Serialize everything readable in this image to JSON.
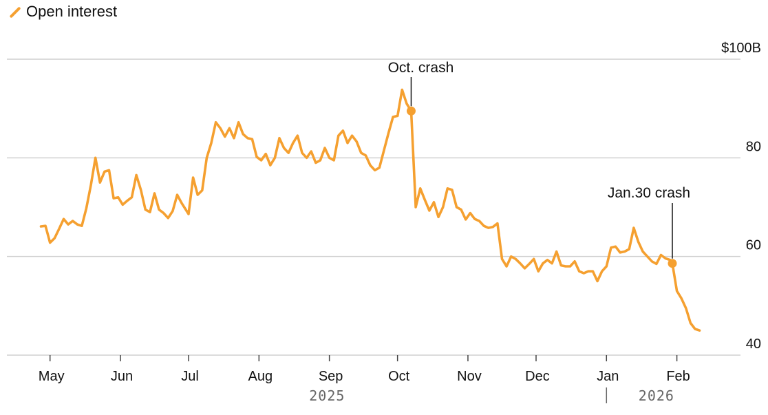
{
  "legend": {
    "label": "Open interest",
    "color": "#f5a030"
  },
  "chart_data": {
    "type": "line",
    "title": "",
    "xlabel": "",
    "ylabel": "",
    "ylim": [
      38,
      100
    ],
    "y_ticks": [
      {
        "value": 100,
        "label": "$100B"
      },
      {
        "value": 80,
        "label": "80"
      },
      {
        "value": 60,
        "label": "60"
      },
      {
        "value": 40,
        "label": "40"
      }
    ],
    "x_ticks": [
      {
        "date": "2025-05-01",
        "label": "May"
      },
      {
        "date": "2025-06-01",
        "label": "Jun"
      },
      {
        "date": "2025-07-01",
        "label": "Jul"
      },
      {
        "date": "2025-08-01",
        "label": "Aug"
      },
      {
        "date": "2025-09-01",
        "label": "Sep"
      },
      {
        "date": "2025-10-01",
        "label": "Oct"
      },
      {
        "date": "2025-11-01",
        "label": "Nov"
      },
      {
        "date": "2025-12-01",
        "label": "Dec"
      },
      {
        "date": "2026-01-01",
        "label": "Jan"
      },
      {
        "date": "2026-02-01",
        "label": "Feb"
      }
    ],
    "years": [
      {
        "label": "2025",
        "date": "2025-08-31"
      },
      {
        "label": "2026",
        "date": "2026-01-23"
      }
    ],
    "year_separator_date": "2026-01-01",
    "grid": true,
    "legend_position": "top-left",
    "series": [
      {
        "name": "Open interest",
        "color": "#f5a030",
        "points": [
          [
            "2025-04-27",
            66.1
          ],
          [
            "2025-04-29",
            66.2
          ],
          [
            "2025-05-01",
            62.8
          ],
          [
            "2025-05-03",
            63.7
          ],
          [
            "2025-05-05",
            65.6
          ],
          [
            "2025-05-07",
            67.6
          ],
          [
            "2025-05-09",
            66.5
          ],
          [
            "2025-05-11",
            67.2
          ],
          [
            "2025-05-13",
            66.5
          ],
          [
            "2025-05-15",
            66.2
          ],
          [
            "2025-05-17",
            69.8
          ],
          [
            "2025-05-19",
            74.5
          ],
          [
            "2025-05-21",
            80.0
          ],
          [
            "2025-05-23",
            75.0
          ],
          [
            "2025-05-25",
            77.2
          ],
          [
            "2025-05-27",
            77.5
          ],
          [
            "2025-05-29",
            71.8
          ],
          [
            "2025-05-31",
            72.0
          ],
          [
            "2025-06-02",
            70.5
          ],
          [
            "2025-06-04",
            71.3
          ],
          [
            "2025-06-06",
            72.0
          ],
          [
            "2025-06-08",
            76.5
          ],
          [
            "2025-06-10",
            73.5
          ],
          [
            "2025-06-12",
            69.5
          ],
          [
            "2025-06-14",
            69.0
          ],
          [
            "2025-06-16",
            72.8
          ],
          [
            "2025-06-18",
            69.5
          ],
          [
            "2025-06-20",
            68.8
          ],
          [
            "2025-06-22",
            67.8
          ],
          [
            "2025-06-24",
            69.2
          ],
          [
            "2025-06-26",
            72.5
          ],
          [
            "2025-06-28",
            70.8
          ],
          [
            "2025-07-01",
            68.6
          ],
          [
            "2025-07-03",
            76.0
          ],
          [
            "2025-07-05",
            72.5
          ],
          [
            "2025-07-07",
            73.4
          ],
          [
            "2025-07-09",
            80.0
          ],
          [
            "2025-07-11",
            83.0
          ],
          [
            "2025-07-13",
            87.2
          ],
          [
            "2025-07-15",
            86.0
          ],
          [
            "2025-07-17",
            84.3
          ],
          [
            "2025-07-19",
            86.0
          ],
          [
            "2025-07-21",
            84.0
          ],
          [
            "2025-07-23",
            87.2
          ],
          [
            "2025-07-25",
            84.8
          ],
          [
            "2025-07-27",
            84.0
          ],
          [
            "2025-07-29",
            83.8
          ],
          [
            "2025-07-31",
            80.2
          ],
          [
            "2025-08-02",
            79.5
          ],
          [
            "2025-08-04",
            80.8
          ],
          [
            "2025-08-06",
            78.5
          ],
          [
            "2025-08-08",
            80.0
          ],
          [
            "2025-08-10",
            84.0
          ],
          [
            "2025-08-12",
            82.0
          ],
          [
            "2025-08-14",
            81.0
          ],
          [
            "2025-08-16",
            83.0
          ],
          [
            "2025-08-18",
            84.5
          ],
          [
            "2025-08-20",
            81.0
          ],
          [
            "2025-08-22",
            80.0
          ],
          [
            "2025-08-24",
            81.3
          ],
          [
            "2025-08-26",
            79.0
          ],
          [
            "2025-08-28",
            79.5
          ],
          [
            "2025-08-30",
            82.0
          ],
          [
            "2025-09-01",
            80.0
          ],
          [
            "2025-09-03",
            79.5
          ],
          [
            "2025-09-05",
            84.5
          ],
          [
            "2025-09-07",
            85.5
          ],
          [
            "2025-09-09",
            83.0
          ],
          [
            "2025-09-11",
            84.5
          ],
          [
            "2025-09-13",
            83.3
          ],
          [
            "2025-09-15",
            81.0
          ],
          [
            "2025-09-17",
            80.5
          ],
          [
            "2025-09-19",
            78.5
          ],
          [
            "2025-09-21",
            77.5
          ],
          [
            "2025-09-23",
            78.0
          ],
          [
            "2025-09-25",
            81.5
          ],
          [
            "2025-09-27",
            85.0
          ],
          [
            "2025-09-29",
            88.3
          ],
          [
            "2025-10-01",
            88.5
          ],
          [
            "2025-10-03",
            93.8
          ],
          [
            "2025-10-05",
            91.0
          ],
          [
            "2025-10-07",
            89.5
          ],
          [
            "2025-10-09",
            70.0
          ],
          [
            "2025-10-11",
            73.8
          ],
          [
            "2025-10-13",
            71.5
          ],
          [
            "2025-10-15",
            69.3
          ],
          [
            "2025-10-17",
            71.0
          ],
          [
            "2025-10-19",
            68.0
          ],
          [
            "2025-10-21",
            70.0
          ],
          [
            "2025-10-23",
            73.8
          ],
          [
            "2025-10-25",
            73.5
          ],
          [
            "2025-10-27",
            70.0
          ],
          [
            "2025-10-29",
            69.5
          ],
          [
            "2025-10-31",
            67.5
          ],
          [
            "2025-11-02",
            68.8
          ],
          [
            "2025-11-04",
            67.6
          ],
          [
            "2025-11-06",
            67.2
          ],
          [
            "2025-11-08",
            66.2
          ],
          [
            "2025-11-10",
            65.8
          ],
          [
            "2025-11-12",
            66.0
          ],
          [
            "2025-11-14",
            66.7
          ],
          [
            "2025-11-16",
            59.5
          ],
          [
            "2025-11-18",
            58.0
          ],
          [
            "2025-11-20",
            60.0
          ],
          [
            "2025-11-22",
            59.5
          ],
          [
            "2025-11-24",
            58.6
          ],
          [
            "2025-11-26",
            57.6
          ],
          [
            "2025-11-28",
            58.5
          ],
          [
            "2025-11-30",
            59.5
          ],
          [
            "2025-12-02",
            57.0
          ],
          [
            "2025-12-04",
            58.6
          ],
          [
            "2025-12-06",
            59.3
          ],
          [
            "2025-12-08",
            58.6
          ],
          [
            "2025-12-10",
            61.0
          ],
          [
            "2025-12-12",
            58.2
          ],
          [
            "2025-12-14",
            58.0
          ],
          [
            "2025-12-16",
            58.0
          ],
          [
            "2025-12-18",
            59.0
          ],
          [
            "2025-12-20",
            57.0
          ],
          [
            "2025-12-22",
            56.6
          ],
          [
            "2025-12-24",
            57.0
          ],
          [
            "2025-12-26",
            57.0
          ],
          [
            "2025-12-28",
            55.0
          ],
          [
            "2025-12-30",
            57.0
          ],
          [
            "2026-01-01",
            58.0
          ],
          [
            "2026-01-03",
            61.8
          ],
          [
            "2026-01-05",
            62.0
          ],
          [
            "2026-01-07",
            60.8
          ],
          [
            "2026-01-09",
            61.0
          ],
          [
            "2026-01-11",
            61.5
          ],
          [
            "2026-01-13",
            65.8
          ],
          [
            "2026-01-15",
            63.0
          ],
          [
            "2026-01-17",
            61.0
          ],
          [
            "2026-01-19",
            60.0
          ],
          [
            "2026-01-21",
            59.0
          ],
          [
            "2026-01-23",
            58.5
          ],
          [
            "2026-01-25",
            60.3
          ],
          [
            "2026-01-27",
            59.6
          ],
          [
            "2026-01-29",
            59.3
          ],
          [
            "2026-01-30",
            58.6
          ],
          [
            "2026-02-01",
            53.0
          ],
          [
            "2026-02-03",
            51.5
          ],
          [
            "2026-02-05",
            49.5
          ],
          [
            "2026-02-07",
            46.5
          ],
          [
            "2026-02-09",
            45.3
          ],
          [
            "2026-02-11",
            45.0
          ]
        ]
      }
    ],
    "annotations": [
      {
        "label": "Oct. crash",
        "date": "2025-10-07",
        "value": 89.5
      },
      {
        "label": "Jan.30 crash",
        "date": "2026-01-30",
        "value": 58.6
      }
    ]
  }
}
